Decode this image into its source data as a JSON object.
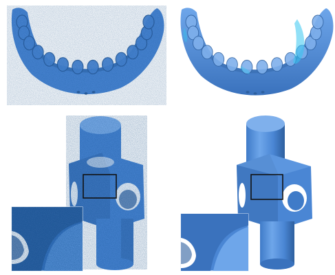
{
  "panels": [
    {
      "name": "noisy-dental-scan",
      "row": "top",
      "column": "left",
      "surface": "noisy"
    },
    {
      "name": "denoised-dental-scan",
      "row": "top",
      "column": "right",
      "surface": "smooth"
    },
    {
      "name": "noisy-cube-cylinder-model",
      "row": "bottom",
      "column": "left",
      "surface": "noisy",
      "has_zoom_inset": true
    },
    {
      "name": "denoised-cube-cylinder-model",
      "row": "bottom",
      "column": "right",
      "surface": "smooth",
      "has_zoom_inset": true
    }
  ],
  "colors": {
    "background": "#ffffff",
    "mesh": "#4a86d4",
    "mesh_dark": "#2d5f9e",
    "mesh_light": "#7fb0ec",
    "highlight": "#36c6f0",
    "zoom_box": "#111111"
  }
}
